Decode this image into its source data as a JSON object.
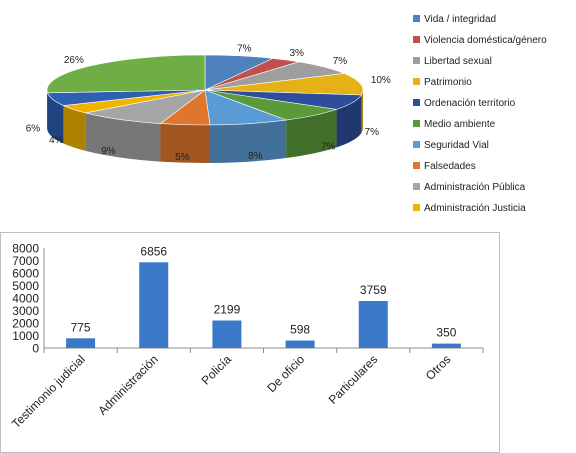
{
  "chart_data": [
    {
      "type": "pie",
      "title": "",
      "legend_position": "right",
      "slices": [
        {
          "label": "Vida / integridad",
          "value": 7,
          "color": "#4f81bd"
        },
        {
          "label": "Violencia doméstica/género",
          "value": 3,
          "color": "#c0504d"
        },
        {
          "label": "Libertad sexual",
          "value": 7,
          "color": "#9e9e9e"
        },
        {
          "label": "Patrimonio",
          "value": 10,
          "color": "#e6b116"
        },
        {
          "label": "Ordenación territorio",
          "value": 7,
          "color": "#2e4d9a"
        },
        {
          "label": "Medio ambiente",
          "value": 7,
          "color": "#5b9a3a"
        },
        {
          "label": "Seguridad Vial",
          "value": 8,
          "color": "#5b9bd5"
        },
        {
          "label": "Falsedades",
          "value": 5,
          "color": "#e0762e"
        },
        {
          "label": "Administración Pública",
          "value": 9,
          "color": "#a5a5a5"
        },
        {
          "label": "Administración Justicia",
          "value": 4,
          "color": "#f0b400"
        },
        {
          "label": "",
          "value": 6,
          "color": "#2e5fb2"
        },
        {
          "label": "",
          "value": 26,
          "color": "#6fae45"
        }
      ],
      "data_labels": [
        "7%",
        "3%",
        "7%",
        "10%",
        "7%",
        "7%",
        "8%",
        "5%",
        "9%",
        "4%",
        "6%",
        "26%"
      ]
    },
    {
      "type": "bar",
      "title": "",
      "categories": [
        "Testimonio judicial",
        "Administración",
        "Policía",
        "De oficio",
        "Particulares",
        "Otros"
      ],
      "values": [
        775,
        6856,
        2199,
        598,
        3759,
        350
      ],
      "ylim": [
        0,
        8000
      ],
      "yticks": [
        "0",
        "1000",
        "2000",
        "3000",
        "4000",
        "5000",
        "6000",
        "7000",
        "8000"
      ],
      "grid": false,
      "bar_color": "#3a78c9"
    }
  ]
}
